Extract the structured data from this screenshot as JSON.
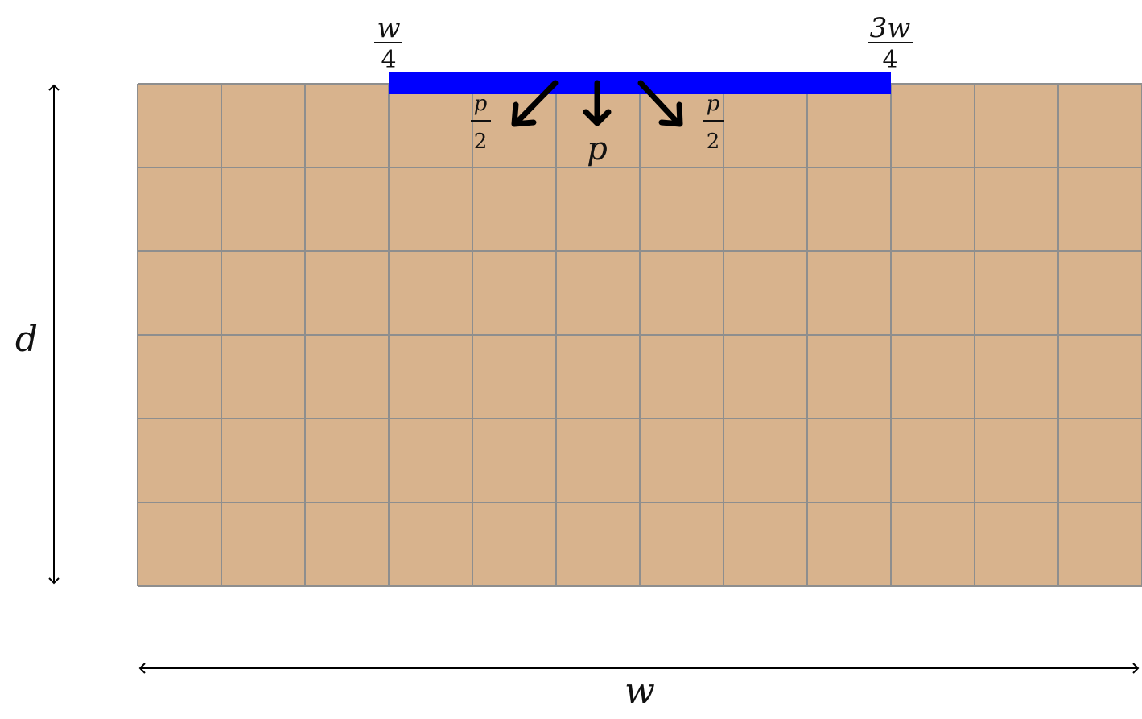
{
  "diagram": {
    "grid": {
      "columns": 12,
      "rows": 6,
      "fill_color": "#D8B38D",
      "line_color": "#8E8E8E"
    },
    "load": {
      "color": "#0000FF",
      "start_fraction": 0.25,
      "end_fraction": 0.75
    },
    "labels": {
      "left_bound": {
        "numerator": "w",
        "denominator": "4"
      },
      "right_bound": {
        "numerator": "3w",
        "denominator": "4"
      },
      "left_force": {
        "numerator": "p",
        "denominator": "2"
      },
      "center_force": "p",
      "right_force": {
        "numerator": "p",
        "denominator": "2"
      },
      "depth": "d",
      "width": "w"
    },
    "arrow_color": "#000000"
  }
}
